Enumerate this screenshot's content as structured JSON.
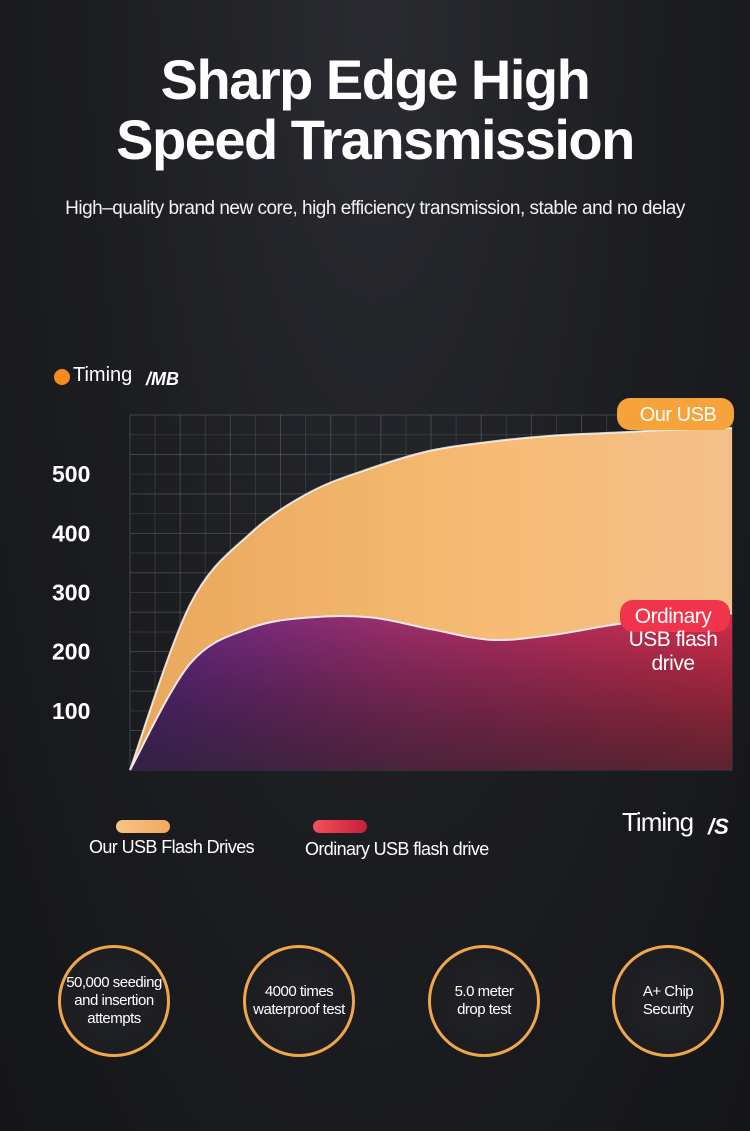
{
  "header": {
    "title_line1": "Sharp Edge High",
    "title_line2": "Speed Transmission",
    "subtitle": "High–quality brand new core, high efficiency transmission, stable and no delay"
  },
  "chart_data": {
    "type": "area",
    "y_axis_label": "Timing",
    "y_unit": "/MB",
    "x_axis_label": "Timing",
    "x_unit": "/S",
    "y_ticks": [
      100,
      200,
      300,
      400,
      500
    ],
    "ylim": [
      0,
      600
    ],
    "xlim": [
      0,
      10
    ],
    "grid": true,
    "series": [
      {
        "name": "Our USB",
        "color": "#f5b469",
        "x": [
          0,
          1,
          2,
          3,
          4,
          5,
          6,
          7,
          8,
          9,
          10
        ],
        "values": [
          0,
          280,
          400,
          470,
          510,
          540,
          555,
          565,
          570,
          575,
          578
        ]
      },
      {
        "name": "Ordinary USB flash drive",
        "color": "#d9314a",
        "x": [
          0,
          1,
          2,
          3,
          4,
          5,
          6,
          7,
          8,
          9,
          10
        ],
        "values": [
          0,
          180,
          240,
          258,
          258,
          238,
          220,
          228,
          245,
          258,
          265
        ]
      }
    ],
    "legend": [
      {
        "label": "Our USB Flash Drives",
        "color": "#f5b469"
      },
      {
        "label": "Ordinary USB flash drive",
        "color": "#e0334a"
      }
    ],
    "callouts": {
      "ours": "Our USB",
      "ordinary_line1": "Ordinary",
      "ordinary_line2": "USB flash",
      "ordinary_line3": "drive"
    },
    "legend_placement": "bottom"
  },
  "badges": [
    {
      "icon": "seeding-badge-icon",
      "text": "50,000 seeding\nand insertion\nattempts"
    },
    {
      "icon": "waterproof-badge-icon",
      "text": "4000 times\nwaterproof test"
    },
    {
      "icon": "drop-badge-icon",
      "text": "5.0 meter\ndrop test"
    },
    {
      "icon": "chip-badge-icon",
      "text": "A+ Chip\nSecurity"
    }
  ],
  "colors": {
    "accent": "#f0a64a",
    "ours": "#f5b469",
    "ordinary": "#d9314a",
    "legend_dot": "#f58a1f"
  }
}
